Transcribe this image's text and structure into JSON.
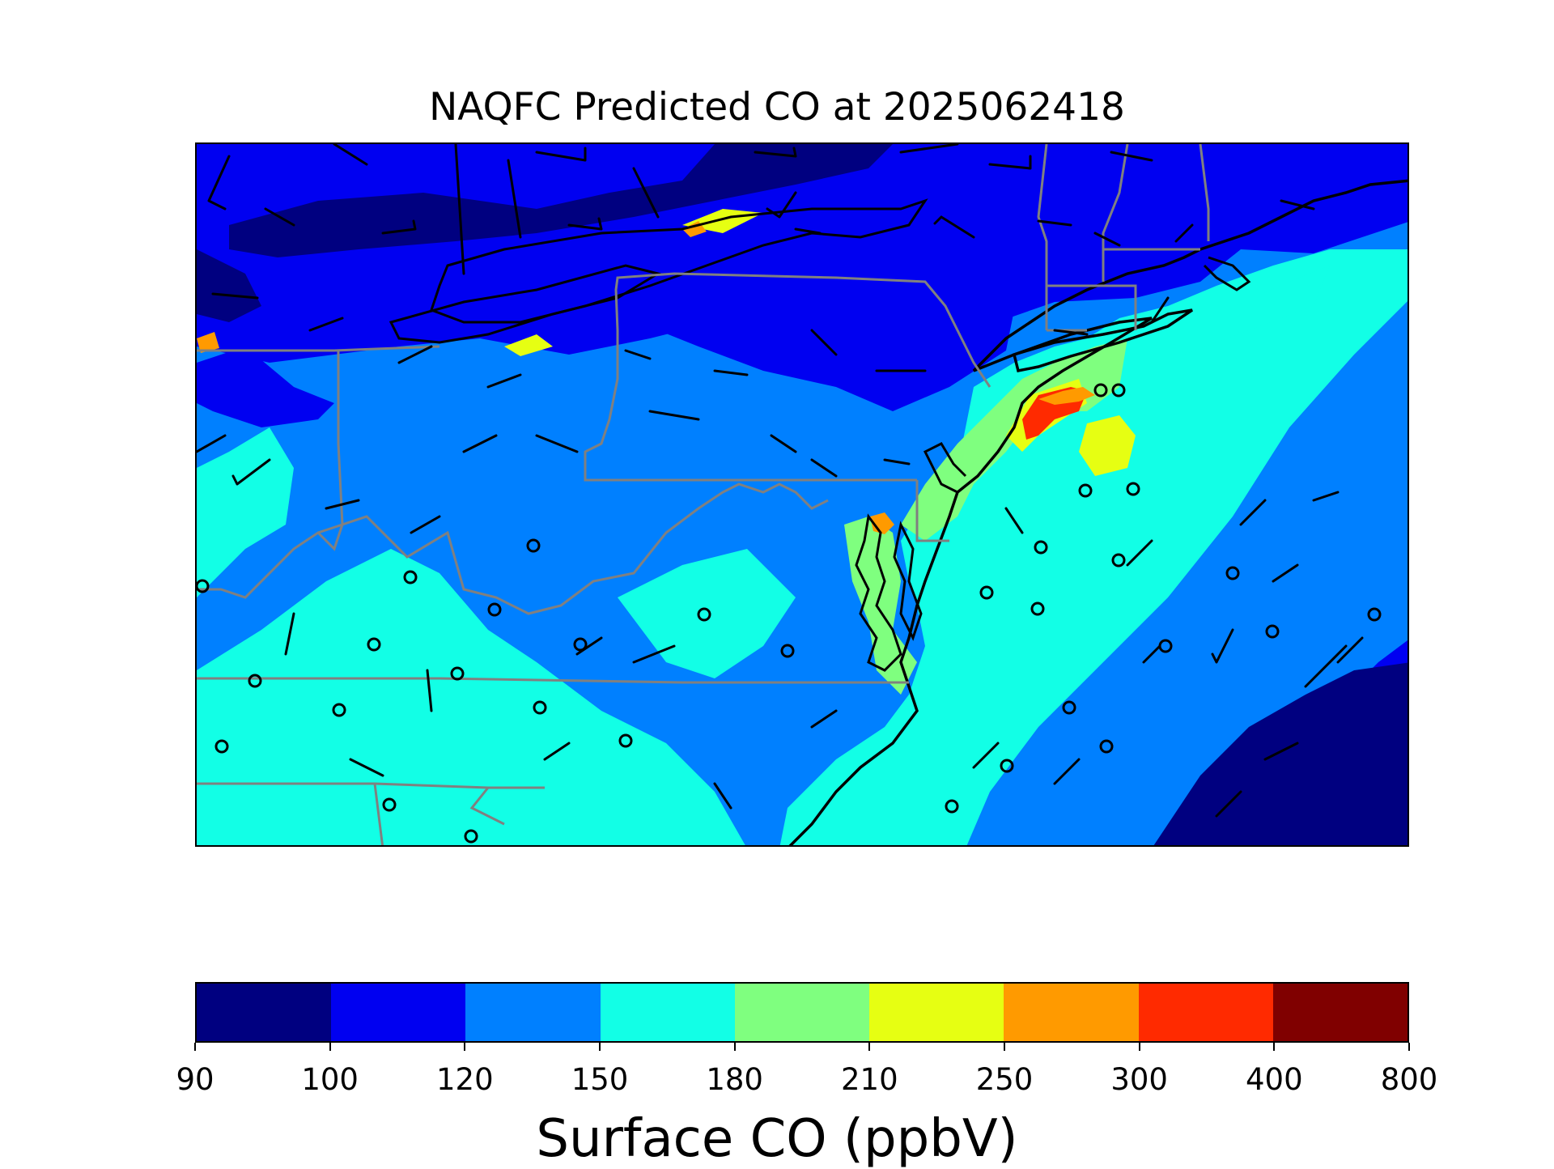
{
  "title": "NAQFC Predicted CO at 2025062418",
  "colorbar": {
    "label": "Surface CO (ppbV)",
    "ticks": [
      "90",
      "100",
      "120",
      "150",
      "180",
      "210",
      "250",
      "300",
      "400",
      "800"
    ],
    "colors": [
      "#000080",
      "#0000f1",
      "#0080ff",
      "#12ffe6",
      "#7fff7f",
      "#e6ff12",
      "#ff9a00",
      "#ff2a00",
      "#800000"
    ]
  },
  "chart_data": {
    "type": "heatmap",
    "title": "NAQFC Predicted CO at 2025062418",
    "variable": "Surface CO",
    "units": "ppbV",
    "levels": [
      90,
      100,
      120,
      150,
      180,
      210,
      250,
      300,
      400,
      800
    ],
    "legend_placement": "bottom",
    "overlays": [
      "coastlines",
      "state boundaries",
      "wind barbs",
      "calm wind circles"
    ]
  }
}
